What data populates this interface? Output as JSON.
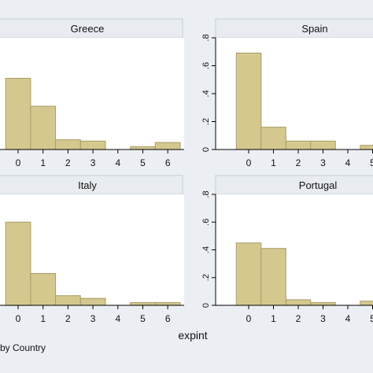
{
  "chart_data": {
    "type": "bar",
    "xlabel": "expint",
    "note": "by Country",
    "colors": {
      "bar_fill": "#d4c88f",
      "bar_stroke": "#a99c66",
      "panel_bg": "#ffffff",
      "strip_bg": "#e8ecf0",
      "figure_bg": "#ebeff3"
    },
    "ylim": [
      0,
      0.8
    ],
    "yticks": [
      ".8",
      ".6",
      ".4",
      ".2",
      "0"
    ],
    "ytick_values": [
      0.8,
      0.6,
      0.4,
      0.2,
      0
    ],
    "xticks": [
      "0",
      "1",
      "2",
      "3",
      "4",
      "5",
      "6"
    ],
    "xtick_values": [
      0,
      1,
      2,
      3,
      4,
      5,
      6
    ],
    "bin_width": 1,
    "panels": [
      {
        "title": "Greece",
        "x": [
          0,
          1,
          2,
          3,
          4,
          5,
          6
        ],
        "values": [
          0.51,
          0.31,
          0.07,
          0.06,
          0.0,
          0.02,
          0.05
        ]
      },
      {
        "title": "Spain",
        "x": [
          0,
          1,
          2,
          3,
          4,
          5
        ],
        "values": [
          0.69,
          0.16,
          0.06,
          0.06,
          0.0,
          0.03
        ]
      },
      {
        "title": "Italy",
        "x": [
          0,
          1,
          2,
          3,
          4,
          5,
          6
        ],
        "values": [
          0.6,
          0.23,
          0.07,
          0.05,
          0.0,
          0.02,
          0.02
        ]
      },
      {
        "title": "Portugal",
        "x": [
          0,
          1,
          2,
          3,
          4,
          5
        ],
        "values": [
          0.45,
          0.41,
          0.04,
          0.02,
          0.0,
          0.03
        ]
      }
    ]
  }
}
